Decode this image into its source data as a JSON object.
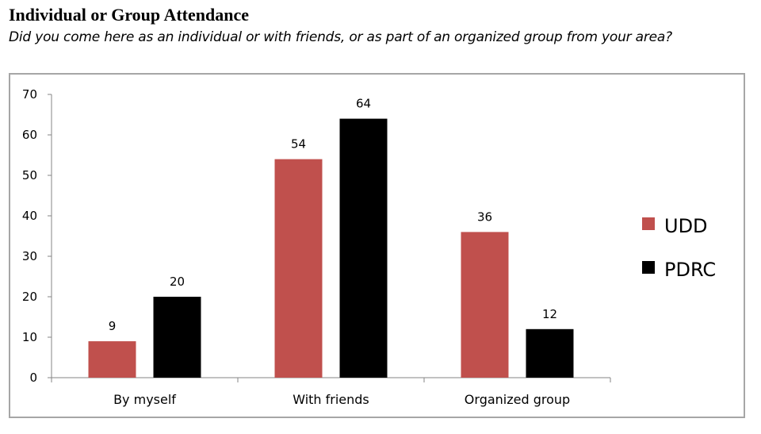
{
  "header": {
    "title": "Individual or Group Attendance",
    "subtitle": "Did you come here as an individual or with friends, or as part of an organized group from your area?"
  },
  "chart_data": {
    "type": "bar",
    "title": "Individual or Group Attendance",
    "subtitle": "Did you come here as an individual or with friends, or as part of an organized group from your area?",
    "categories": [
      "By myself",
      "With friends",
      "Organized group"
    ],
    "series": [
      {
        "name": "UDD",
        "color": "#c0504d",
        "values": [
          9,
          54,
          36
        ]
      },
      {
        "name": "PDRC",
        "color": "#000000",
        "values": [
          20,
          64,
          12
        ]
      }
    ],
    "xlabel": "",
    "ylabel": "",
    "ylim": [
      0,
      70
    ],
    "yticks": [
      0,
      10,
      20,
      30,
      40,
      50,
      60,
      70
    ],
    "grid": false,
    "legend": "right",
    "data_labels": true
  }
}
